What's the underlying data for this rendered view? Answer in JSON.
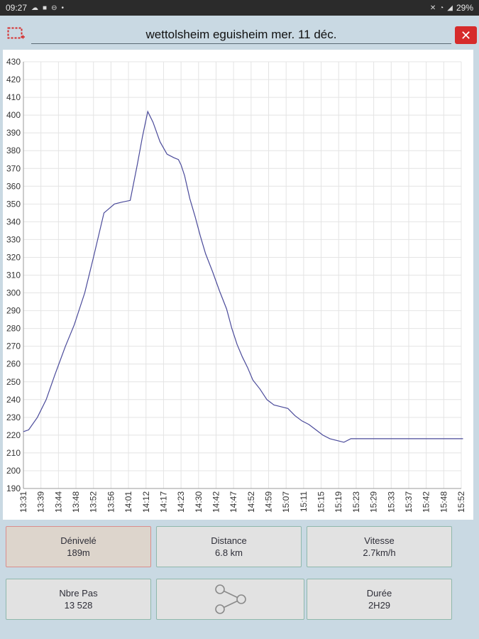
{
  "status": {
    "time": "09:27",
    "battery": "29%"
  },
  "header": {
    "title": "wettolsheim eguisheim mer. 11 déc.",
    "close_label": "✕"
  },
  "chart_data": {
    "type": "line",
    "title": "",
    "xlabel": "",
    "ylabel": "",
    "ylim": [
      190,
      430
    ],
    "yticks": [
      190,
      200,
      210,
      220,
      230,
      240,
      250,
      260,
      270,
      280,
      290,
      300,
      310,
      320,
      330,
      340,
      350,
      360,
      370,
      380,
      390,
      400,
      410,
      420,
      430
    ],
    "x_ticks": [
      "13:31",
      "13:39",
      "13:44",
      "13:48",
      "13:52",
      "13:56",
      "14:01",
      "14:12",
      "14:17",
      "14:23",
      "14:30",
      "14:42",
      "14:47",
      "14:52",
      "14:59",
      "15:07",
      "15:11",
      "15:15",
      "15:19",
      "15:23",
      "15:29",
      "15:33",
      "15:37",
      "15:42",
      "15:48",
      "15:52"
    ],
    "line_color": "#4a4a9a",
    "grid": true,
    "series": [
      {
        "x": [
          0,
          0.3,
          0.8,
          1.3,
          1.8,
          2.4,
          2.9,
          3.5,
          4.0,
          4.6,
          5.2,
          5.6,
          6.1,
          6.5,
          6.8,
          7.1,
          7.4,
          7.8,
          8.2,
          8.6,
          8.85,
          9.0,
          9.2,
          9.5,
          9.8,
          10.1,
          10.4,
          10.8,
          11.2,
          11.6,
          11.9,
          12.2,
          12.5,
          12.8,
          13.1,
          13.5,
          13.9,
          14.3,
          14.7,
          15.1,
          15.5,
          15.9,
          16.3,
          16.7,
          17.1,
          17.5,
          17.9,
          18.3,
          18.7,
          19.1,
          19.5,
          19.9,
          20.2,
          20.6,
          21.0,
          21.4,
          21.8,
          22.2,
          22.6,
          23.0,
          23.4,
          23.8,
          24.2,
          24.6,
          24.9,
          25.1
        ],
        "values": [
          222,
          223,
          230,
          240,
          254,
          270,
          282,
          300,
          320,
          345,
          350,
          351,
          352,
          372,
          388,
          402,
          396,
          385,
          378,
          376,
          375,
          372,
          366,
          353,
          343,
          332,
          322,
          312,
          301,
          291,
          280,
          271,
          264,
          258,
          251,
          246,
          240,
          237,
          236,
          235,
          231,
          228,
          226,
          223,
          220,
          218,
          217,
          216,
          218,
          218,
          218,
          218,
          218,
          218,
          218,
          218,
          218,
          218,
          218,
          218,
          218,
          218,
          218,
          218,
          218,
          218
        ]
      }
    ]
  },
  "stats": {
    "denivele": {
      "label": "Dénivelé",
      "value": "189m"
    },
    "distance": {
      "label": "Distance",
      "value": "6.8 km"
    },
    "vitesse": {
      "label": "Vitesse",
      "value": "2.7km/h"
    },
    "pas": {
      "label": "Nbre Pas",
      "value": "13 528"
    },
    "duree": {
      "label": "Durée",
      "value": "2H29"
    }
  }
}
